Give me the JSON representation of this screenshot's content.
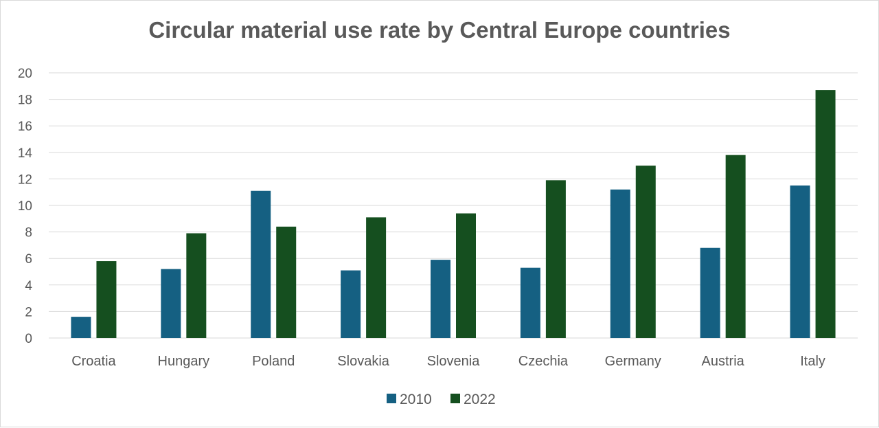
{
  "chart_data": {
    "type": "bar",
    "title": "Circular material use rate by Central Europe countries",
    "categories": [
      "Croatia",
      "Hungary",
      "Poland",
      "Slovakia",
      "Slovenia",
      "Czechia",
      "Germany",
      "Austria",
      "Italy"
    ],
    "series": [
      {
        "name": "2010",
        "color": "#156082",
        "values": [
          1.6,
          5.2,
          11.1,
          5.1,
          5.9,
          5.3,
          11.2,
          6.8,
          11.5
        ]
      },
      {
        "name": "2022",
        "color": "#154f1f",
        "values": [
          5.8,
          7.9,
          8.4,
          9.1,
          9.4,
          11.9,
          13.0,
          13.8,
          18.7
        ]
      }
    ],
    "ylim": [
      0,
      20
    ],
    "yticks": [
      "0",
      "2",
      "4",
      "6",
      "8",
      "10",
      "12",
      "14",
      "16",
      "18",
      "20"
    ],
    "grid": true,
    "legend": "bottom",
    "xlabel": "",
    "ylabel": ""
  }
}
